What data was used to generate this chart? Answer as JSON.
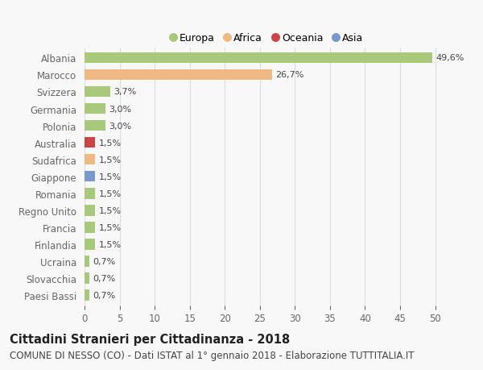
{
  "countries": [
    "Albania",
    "Marocco",
    "Svizzera",
    "Germania",
    "Polonia",
    "Australia",
    "Sudafrica",
    "Giappone",
    "Romania",
    "Regno Unito",
    "Francia",
    "Finlandia",
    "Ucraina",
    "Slovacchia",
    "Paesi Bassi"
  ],
  "values": [
    49.6,
    26.7,
    3.7,
    3.0,
    3.0,
    1.5,
    1.5,
    1.5,
    1.5,
    1.5,
    1.5,
    1.5,
    0.7,
    0.7,
    0.7
  ],
  "labels": [
    "49,6%",
    "26,7%",
    "3,7%",
    "3,0%",
    "3,0%",
    "1,5%",
    "1,5%",
    "1,5%",
    "1,5%",
    "1,5%",
    "1,5%",
    "1,5%",
    "0,7%",
    "0,7%",
    "0,7%"
  ],
  "colors": [
    "#a8c87a",
    "#f0b882",
    "#a8c87a",
    "#a8c87a",
    "#a8c87a",
    "#cc4444",
    "#f0b882",
    "#7799cc",
    "#a8c87a",
    "#a8c87a",
    "#a8c87a",
    "#a8c87a",
    "#a8c87a",
    "#a8c87a",
    "#a8c87a"
  ],
  "legend": [
    {
      "label": "Europa",
      "color": "#a8c87a"
    },
    {
      "label": "Africa",
      "color": "#f0b882"
    },
    {
      "label": "Oceania",
      "color": "#cc4444"
    },
    {
      "label": "Asia",
      "color": "#7799cc"
    }
  ],
  "xlim": [
    0,
    52
  ],
  "xticks": [
    0,
    5,
    10,
    15,
    20,
    25,
    30,
    35,
    40,
    45,
    50
  ],
  "title": "Cittadini Stranieri per Cittadinanza - 2018",
  "subtitle": "COMUNE DI NESSO (CO) - Dati ISTAT al 1° gennaio 2018 - Elaborazione TUTTITALIA.IT",
  "background_color": "#f8f8f8",
  "bar_height": 0.65,
  "grid_color": "#dddddd",
  "title_fontsize": 10.5,
  "subtitle_fontsize": 8.5,
  "label_fontsize": 8,
  "tick_fontsize": 8.5
}
